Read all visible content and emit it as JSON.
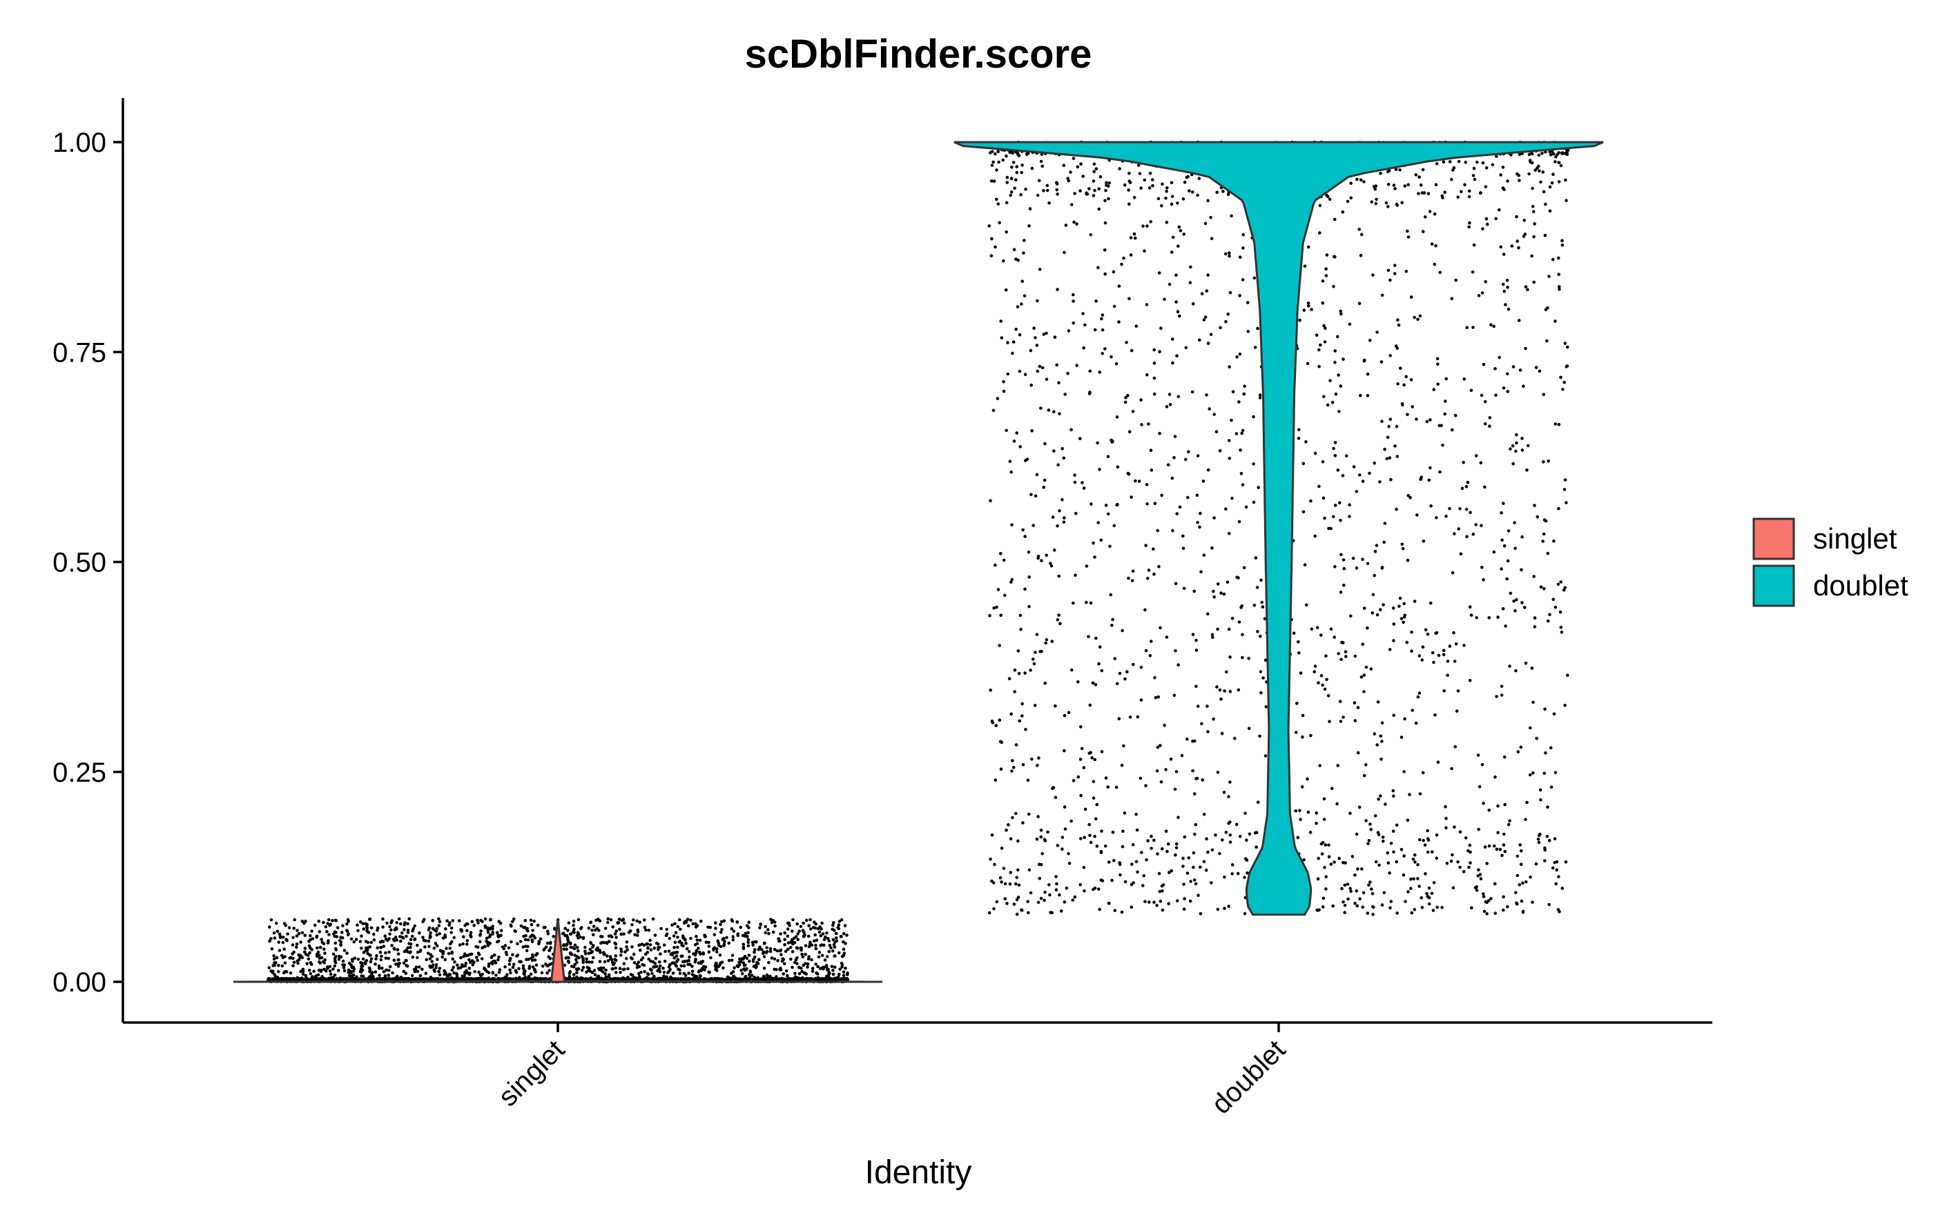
{
  "chart_data": {
    "type": "violin",
    "title": "scDblFinder.score",
    "xlabel": "Identity",
    "ylabel": "",
    "categories": [
      "singlet",
      "doublet"
    ],
    "ylim": [
      -0.05,
      1.05
    ],
    "yticks": [
      0.0,
      0.25,
      0.5,
      0.75,
      1.0
    ],
    "ytick_labels": [
      "0.00",
      "0.25",
      "0.50",
      "0.75",
      "1.00"
    ],
    "grid": false,
    "legend_position": "right",
    "legend": [
      {
        "label": "singlet",
        "color": "#F8766D"
      },
      {
        "label": "doublet",
        "color": "#00BFC4"
      }
    ],
    "series": [
      {
        "category": "singlet",
        "color": "#F8766D",
        "min": 0.0,
        "max": 0.075,
        "point_range": [
          0.0,
          0.075
        ],
        "density_profile": [
          [
            0.0,
            1.0
          ],
          [
            0.001,
            0.02
          ],
          [
            0.075,
            0.0
          ]
        ]
      },
      {
        "category": "doublet",
        "color": "#00BFC4",
        "min": 0.08,
        "max": 1.0,
        "point_range": [
          0.08,
          1.0
        ],
        "density_profile": [
          [
            0.08,
            0.08
          ],
          [
            0.09,
            0.095
          ],
          [
            0.11,
            0.1
          ],
          [
            0.13,
            0.09
          ],
          [
            0.16,
            0.05
          ],
          [
            0.2,
            0.035
          ],
          [
            0.3,
            0.03
          ],
          [
            0.5,
            0.04
          ],
          [
            0.7,
            0.048
          ],
          [
            0.8,
            0.058
          ],
          [
            0.88,
            0.075
          ],
          [
            0.93,
            0.11
          ],
          [
            0.96,
            0.22
          ],
          [
            0.98,
            0.5
          ],
          [
            0.99,
            0.8
          ],
          [
            0.995,
            0.97
          ],
          [
            1.0,
            1.0
          ]
        ]
      }
    ]
  }
}
